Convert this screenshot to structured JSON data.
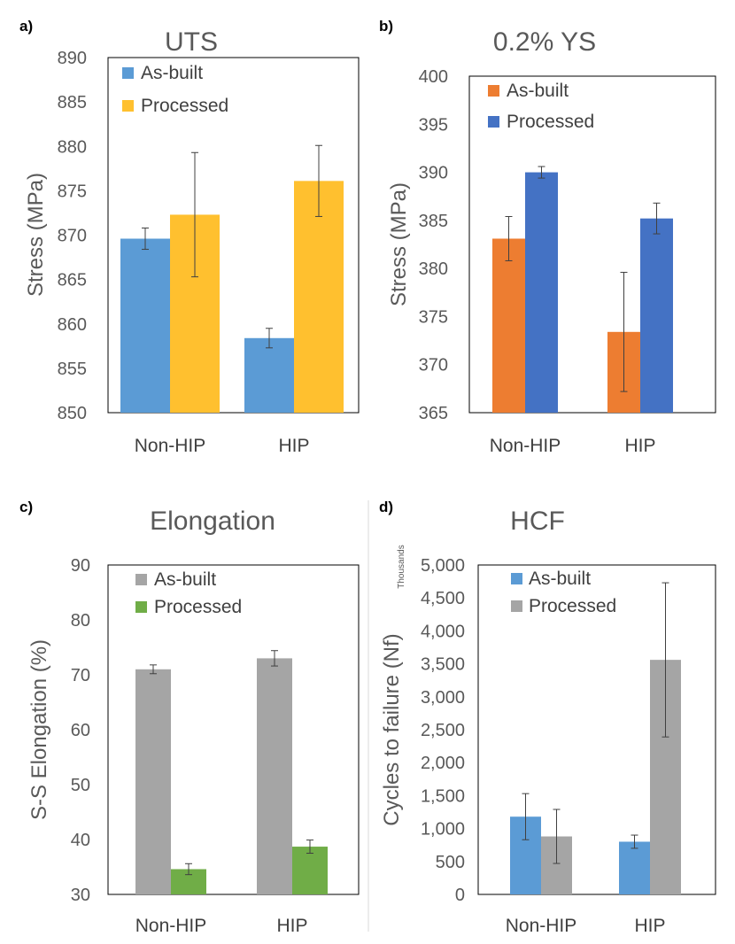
{
  "chart_data": [
    {
      "panel": "a)",
      "type": "bar",
      "title": "UTS",
      "xlabel": "",
      "ylabel": "Stress (MPa)",
      "categories": [
        "Non-HIP",
        "HIP"
      ],
      "ylim": [
        850,
        890
      ],
      "ytick_step": 5,
      "ytick_labels": [
        "850",
        "855",
        "860",
        "865",
        "870",
        "875",
        "880",
        "885",
        "890"
      ],
      "legend_position": "top-left",
      "grid": false,
      "series": [
        {
          "name": "As-built",
          "color": "#5B9BD5",
          "values": [
            869.6,
            858.4
          ],
          "errors": [
            1.2,
            1.1
          ]
        },
        {
          "name": "Processed",
          "color": "#FFC02F",
          "values": [
            872.3,
            876.1
          ],
          "errors": [
            7.0,
            4.0
          ]
        }
      ]
    },
    {
      "panel": "b)",
      "type": "bar",
      "title": "0.2% YS",
      "xlabel": "",
      "ylabel": "Stress (MPa)",
      "categories": [
        "Non-HIP",
        "HIP"
      ],
      "ylim": [
        365,
        400
      ],
      "ytick_step": 5,
      "ytick_labels": [
        "365",
        "370",
        "375",
        "380",
        "385",
        "390",
        "395",
        "400"
      ],
      "legend_position": "top-left",
      "grid": false,
      "series": [
        {
          "name": "As-built",
          "color": "#ED7D31",
          "values": [
            383.1,
            373.4
          ],
          "errors": [
            2.3,
            6.2
          ]
        },
        {
          "name": "Processed",
          "color": "#4472C4",
          "values": [
            390.0,
            385.2
          ],
          "errors": [
            0.6,
            1.6
          ]
        }
      ]
    },
    {
      "panel": "c)",
      "type": "bar",
      "title": "Elongation",
      "xlabel": "",
      "ylabel": "S-S Elongation (%)",
      "categories": [
        "Non-HIP",
        "HIP"
      ],
      "ylim": [
        30,
        90
      ],
      "ytick_step": 10,
      "ytick_labels": [
        "30",
        "40",
        "50",
        "60",
        "70",
        "80",
        "90"
      ],
      "legend_position": "top-left",
      "grid": false,
      "series": [
        {
          "name": "As-built",
          "color": "#A5A5A5",
          "values": [
            71.0,
            73.0
          ],
          "errors": [
            0.8,
            1.4
          ]
        },
        {
          "name": "Processed",
          "color": "#70AD47",
          "values": [
            34.6,
            38.7
          ],
          "errors": [
            1.0,
            1.2
          ]
        }
      ]
    },
    {
      "panel": "d)",
      "type": "bar",
      "title": "HCF",
      "xlabel": "",
      "ylabel": "Cycles to failure (Nf)",
      "unit_label": "Thousands",
      "categories": [
        "Non-HIP",
        "HIP"
      ],
      "ylim": [
        0,
        5000
      ],
      "ytick_step": 500,
      "ytick_labels": [
        "0",
        "500",
        "1,000",
        "1,500",
        "2,000",
        "2,500",
        "3,000",
        "3,500",
        "4,000",
        "4,500",
        "5,000"
      ],
      "legend_position": "top-left",
      "grid": false,
      "series": [
        {
          "name": "As-built",
          "color": "#5B9BD5",
          "values": [
            1180,
            800
          ],
          "errors": [
            350,
            100
          ]
        },
        {
          "name": "Processed",
          "color": "#A5A5A5",
          "values": [
            880,
            3560
          ],
          "errors": [
            410,
            1170
          ]
        }
      ]
    }
  ]
}
